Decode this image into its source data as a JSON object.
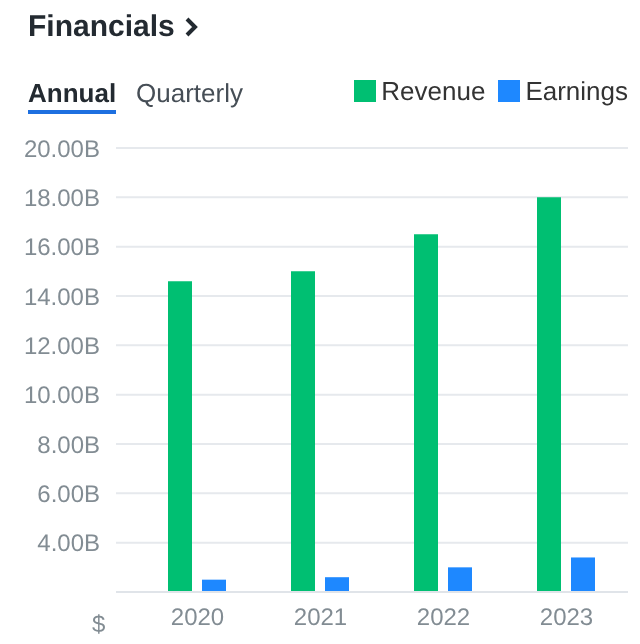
{
  "chart_data": {
    "type": "bar",
    "title": "Financials",
    "annotations": [
      "Annual",
      "Quarterly",
      "$"
    ],
    "categories": [
      "2020",
      "2021",
      "2022",
      "2023"
    ],
    "series": [
      {
        "name": "Revenue",
        "color": "#00bf72",
        "values": [
          14.6,
          15.0,
          16.5,
          18.0
        ]
      },
      {
        "name": "Earnings",
        "color": "#1e88ff",
        "values": [
          2.5,
          2.6,
          3.0,
          3.4
        ]
      }
    ],
    "ylim": [
      2,
      20
    ],
    "yticks": [
      {
        "value": 2,
        "label": null
      },
      {
        "value": 4,
        "label": "4.00B"
      },
      {
        "value": 6,
        "label": "6.00B"
      },
      {
        "value": 8,
        "label": "8.00B"
      },
      {
        "value": 10,
        "label": "10.00B"
      },
      {
        "value": 12,
        "label": "12.00B"
      },
      {
        "value": 14,
        "label": "14.00B"
      },
      {
        "value": 16,
        "label": "16.00B"
      },
      {
        "value": 18,
        "label": "18.00B"
      },
      {
        "value": 20,
        "label": "20.00B"
      }
    ],
    "grid": "y",
    "legend": "top right"
  }
}
